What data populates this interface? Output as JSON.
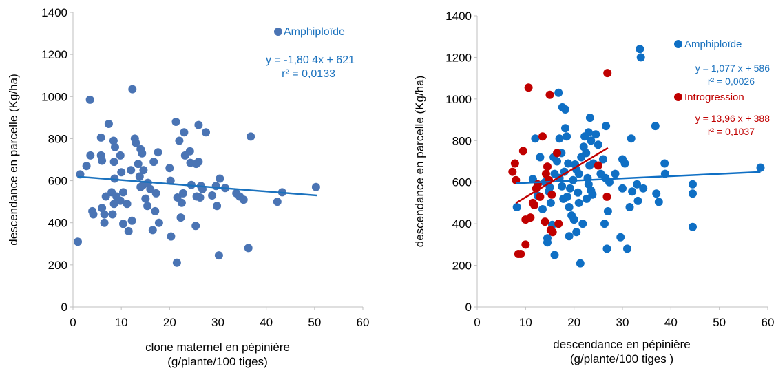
{
  "colors": {
    "amphiploide_points": "#4a74b4",
    "amphiploide_trend": "#1b72be",
    "amphiploide_right_points": "#0f6fc4",
    "introgression": "#c00000",
    "axis": "#bfbfbf",
    "text": "#000000"
  },
  "chart_data": [
    {
      "type": "scatter",
      "xlabel": "clone maternel en pépinière",
      "xlabel2": "(g/plante/100 tiges)",
      "ylabel": "descendance en parcelle (Kg/ha)",
      "xlim": [
        0,
        60
      ],
      "ylim": [
        0,
        1400
      ],
      "xticks": [
        "0",
        "10",
        "20",
        "30",
        "40",
        "50",
        "60"
      ],
      "yticks": [
        "0",
        "200",
        "400",
        "600",
        "800",
        "1000",
        "1200",
        "1400"
      ],
      "grid": false,
      "legend_position": "top-right",
      "series": [
        {
          "name": "Amphiploïde",
          "color": "#4a74b4",
          "equation": "y = -1,80 4x + 621",
          "r2": "r² = 0,0133",
          "trend": {
            "slope": -1.804,
            "intercept": 621,
            "x_range": [
              1,
              50.5
            ]
          },
          "points": [
            [
              1,
              310
            ],
            [
              1.5,
              630
            ],
            [
              2.8,
              670
            ],
            [
              3.5,
              985
            ],
            [
              3.6,
              720
            ],
            [
              4,
              455
            ],
            [
              4.2,
              440
            ],
            [
              5.8,
              805
            ],
            [
              5.8,
              720
            ],
            [
              6,
              695
            ],
            [
              6,
              470
            ],
            [
              6.5,
              440
            ],
            [
              6.5,
              400
            ],
            [
              6.8,
              525
            ],
            [
              7.4,
              870
            ],
            [
              8,
              545
            ],
            [
              8.2,
              440
            ],
            [
              8.4,
              790
            ],
            [
              8.5,
              690
            ],
            [
              8.5,
              490
            ],
            [
              8.6,
              610
            ],
            [
              8.7,
              760
            ],
            [
              9,
              525
            ],
            [
              9.8,
              720
            ],
            [
              9.8,
              505
            ],
            [
              10,
              640
            ],
            [
              10.4,
              395
            ],
            [
              10.4,
              545
            ],
            [
              11.2,
              490
            ],
            [
              11.5,
              360
            ],
            [
              12,
              650
            ],
            [
              12.2,
              410
            ],
            [
              12.3,
              1035
            ],
            [
              12.8,
              800
            ],
            [
              13,
              780
            ],
            [
              13.5,
              680
            ],
            [
              13.8,
              620
            ],
            [
              14,
              570
            ],
            [
              14,
              750
            ],
            [
              14.3,
              730
            ],
            [
              14.5,
              580
            ],
            [
              14.6,
              650
            ],
            [
              15,
              515
            ],
            [
              15.4,
              480
            ],
            [
              15.5,
              590
            ],
            [
              16,
              560
            ],
            [
              16.5,
              365
            ],
            [
              16.7,
              690
            ],
            [
              17,
              455
            ],
            [
              17.2,
              540
            ],
            [
              17.6,
              735
            ],
            [
              17.8,
              400
            ],
            [
              20,
              660
            ],
            [
              20.2,
              600
            ],
            [
              20.3,
              335
            ],
            [
              21.3,
              880
            ],
            [
              21.5,
              210
            ],
            [
              21.6,
              520
            ],
            [
              22,
              790
            ],
            [
              22.3,
              425
            ],
            [
              22.5,
              495
            ],
            [
              22.8,
              540
            ],
            [
              23,
              830
            ],
            [
              23.2,
              720
            ],
            [
              24.2,
              740
            ],
            [
              24.3,
              685
            ],
            [
              24.5,
              580
            ],
            [
              25.4,
              385
            ],
            [
              25.5,
              680
            ],
            [
              25.6,
              525
            ],
            [
              26,
              865
            ],
            [
              26,
              690
            ],
            [
              26.3,
              520
            ],
            [
              26.5,
              575
            ],
            [
              26.8,
              560
            ],
            [
              27.5,
              830
            ],
            [
              28.8,
              530
            ],
            [
              29.6,
              575
            ],
            [
              29.8,
              480
            ],
            [
              30.2,
              245
            ],
            [
              30.4,
              610
            ],
            [
              31.5,
              565
            ],
            [
              33.8,
              540
            ],
            [
              34.5,
              525
            ],
            [
              35.3,
              510
            ],
            [
              36.3,
              280
            ],
            [
              36.8,
              810
            ],
            [
              42.3,
              500
            ],
            [
              43.3,
              545
            ],
            [
              50.3,
              570
            ]
          ]
        }
      ]
    },
    {
      "type": "scatter",
      "xlabel": "descendance en pépinière",
      "xlabel2": "(g/plante/100 tiges )",
      "ylabel": "descendance en parcelle (Kg/ha)",
      "xlim": [
        0,
        60
      ],
      "ylim": [
        0,
        1400
      ],
      "xticks": [
        "0",
        "10",
        "20",
        "30",
        "40",
        "50",
        "60"
      ],
      "yticks": [
        "0",
        "200",
        "400",
        "600",
        "800",
        "1000",
        "1200",
        "1400"
      ],
      "grid": false,
      "legend_position": "top-right",
      "series": [
        {
          "name": "Amphiploïde",
          "color": "#0f6fc4",
          "equation": "y = 1,077 x + 586",
          "r2": "r² = 0,0026",
          "trend": {
            "slope": 1.077,
            "intercept": 586,
            "x_range": [
              8,
              58.5
            ]
          },
          "points": [
            [
              8.2,
              480
            ],
            [
              11.5,
              615
            ],
            [
              12,
              810
            ],
            [
              12.5,
              535
            ],
            [
              13,
              720
            ],
            [
              13.5,
              470
            ],
            [
              14,
              600
            ],
            [
              14.5,
              330
            ],
            [
              14.5,
              310
            ],
            [
              14.8,
              555
            ],
            [
              15,
              575
            ],
            [
              15.2,
              500
            ],
            [
              15.5,
              395
            ],
            [
              15.8,
              720
            ],
            [
              16,
              640
            ],
            [
              16,
              250
            ],
            [
              16.5,
              700
            ],
            [
              16.8,
              1030
            ],
            [
              17,
              620
            ],
            [
              17,
              810
            ],
            [
              17.4,
              740
            ],
            [
              17.5,
              580
            ],
            [
              17.6,
              960
            ],
            [
              17.8,
              520
            ],
            [
              18,
              650
            ],
            [
              18.2,
              860
            ],
            [
              18.2,
              950
            ],
            [
              18.5,
              820
            ],
            [
              18.6,
              530
            ],
            [
              18.8,
              690
            ],
            [
              19,
              480
            ],
            [
              19,
              340
            ],
            [
              19.2,
              570
            ],
            [
              19.5,
              440
            ],
            [
              19.8,
              610
            ],
            [
              20,
              420
            ],
            [
              20.2,
              685
            ],
            [
              20.5,
              660
            ],
            [
              20.5,
              360
            ],
            [
              20.8,
              550
            ],
            [
              21,
              500
            ],
            [
              21,
              640
            ],
            [
              21.3,
              210
            ],
            [
              21.5,
              720
            ],
            [
              21.8,
              400
            ],
            [
              22,
              770
            ],
            [
              22.2,
              820
            ],
            [
              22.5,
              740
            ],
            [
              22.6,
              520
            ],
            [
              22.8,
              620
            ],
            [
              23,
              840
            ],
            [
              23,
              590
            ],
            [
              23.2,
              680
            ],
            [
              23.3,
              910
            ],
            [
              23.5,
              800
            ],
            [
              23.5,
              560
            ],
            [
              23.8,
              540
            ],
            [
              24,
              690
            ],
            [
              24.5,
              830
            ],
            [
              25,
              780
            ],
            [
              25.5,
              640
            ],
            [
              26,
              710
            ],
            [
              26.3,
              400
            ],
            [
              26.5,
              620
            ],
            [
              26.6,
              870
            ],
            [
              26.8,
              280
            ],
            [
              27,
              460
            ],
            [
              27.3,
              600
            ],
            [
              28.5,
              640
            ],
            [
              29.6,
              335
            ],
            [
              30,
              710
            ],
            [
              30,
              570
            ],
            [
              30.5,
              690
            ],
            [
              31,
              280
            ],
            [
              31.5,
              480
            ],
            [
              31.8,
              810
            ],
            [
              32,
              555
            ],
            [
              33,
              590
            ],
            [
              33.2,
              510
            ],
            [
              33.6,
              1240
            ],
            [
              33.8,
              1200
            ],
            [
              34.3,
              570
            ],
            [
              36.8,
              870
            ],
            [
              37,
              545
            ],
            [
              37.5,
              505
            ],
            [
              38.7,
              690
            ],
            [
              38.8,
              640
            ],
            [
              44.5,
              590
            ],
            [
              44.5,
              545
            ],
            [
              44.5,
              385
            ],
            [
              58.5,
              670
            ]
          ]
        },
        {
          "name": "Introgression",
          "color": "#c00000",
          "equation": "y = 13,96 x + 388",
          "r2": "r² = 0,1037",
          "trend": {
            "slope": 13.96,
            "intercept": 388,
            "x_range": [
              8,
              27
            ]
          },
          "points": [
            [
              7.3,
              650
            ],
            [
              7.8,
              690
            ],
            [
              8,
              610
            ],
            [
              8.5,
              255
            ],
            [
              9,
              255
            ],
            [
              9.5,
              750
            ],
            [
              10,
              420
            ],
            [
              10,
              300
            ],
            [
              10.6,
              1055
            ],
            [
              11,
              430
            ],
            [
              11.5,
              500
            ],
            [
              11.8,
              490
            ],
            [
              12.2,
              570
            ],
            [
              12.5,
              590
            ],
            [
              13,
              530
            ],
            [
              13.5,
              820
            ],
            [
              14,
              410
            ],
            [
              14.2,
              640
            ],
            [
              14.5,
              675
            ],
            [
              14.8,
              610
            ],
            [
              15,
              1020
            ],
            [
              15.2,
              370
            ],
            [
              15.4,
              540
            ],
            [
              15.6,
              360
            ],
            [
              16.5,
              740
            ],
            [
              16.8,
              400
            ],
            [
              25,
              680
            ],
            [
              26.8,
              530
            ],
            [
              26.9,
              1125
            ]
          ]
        }
      ]
    }
  ]
}
